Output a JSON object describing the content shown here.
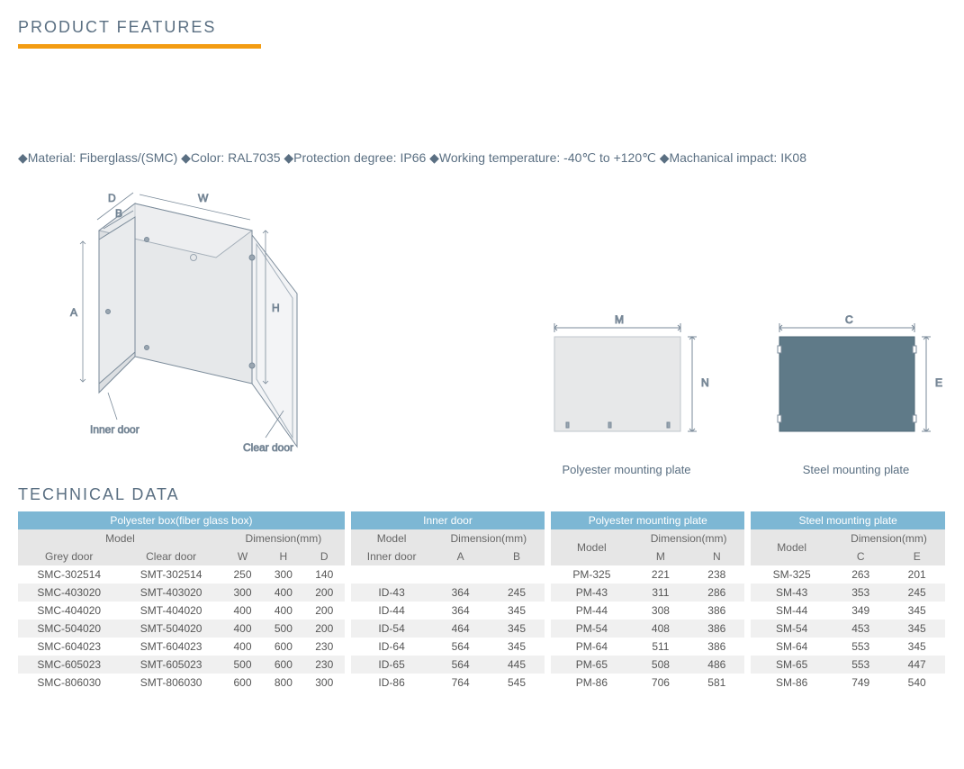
{
  "titles": {
    "features": "PRODUCT FEATURES",
    "technical": "TECHNICAL DATA"
  },
  "features_text": "◆Material: Fiberglass/(SMC)  ◆Color: RAL7035  ◆Protection degree: IP66  ◆Working temperature: -40℃ to +120℃  ◆Machanical impact: IK08",
  "diagram_labels": {
    "inner_door": "Inner door",
    "clear_door": "Clear door",
    "poly_plate": "Polyester mounting plate",
    "steel_plate": "Steel mounting plate",
    "W": "W",
    "D": "D",
    "H": "H",
    "A": "A",
    "B": "B",
    "M": "M",
    "N": "N",
    "C": "C",
    "E": "E"
  },
  "colors": {
    "accent_orange": "#f39c12",
    "header_blue": "#7db7d4",
    "text": "#5a6f82",
    "steel_fill": "#5f7a88",
    "poly_fill": "#e7e8e9",
    "grey_header": "#e6e6e6",
    "alt_row": "#f0f0f0"
  },
  "table": {
    "group_headers": [
      "Polyester box(fiber glass box)",
      "Inner door",
      "Polyester mounting plate",
      "Steel mounting plate"
    ],
    "sub_headers_row1": [
      "Model",
      "Dimension(mm)",
      "Model",
      "Dimension(mm)",
      "Model",
      "Dimension(mm)",
      "Model",
      "Dimension(mm)"
    ],
    "sub_headers_row2": [
      "Grey door",
      "Clear door",
      "W",
      "H",
      "D",
      "Inner door",
      "A",
      "B",
      "M",
      "N",
      "C",
      "E"
    ],
    "rows": [
      {
        "g": "SMC-302514",
        "c": "SMT-302514",
        "w": "250",
        "h": "300",
        "d": "140",
        "id": "",
        "a": "",
        "b": "",
        "pm": "PM-325",
        "m": "221",
        "n": "238",
        "sm": "SM-325",
        "cc": "263",
        "e": "201"
      },
      {
        "g": "SMC-403020",
        "c": "SMT-403020",
        "w": "300",
        "h": "400",
        "d": "200",
        "id": "ID-43",
        "a": "364",
        "b": "245",
        "pm": "PM-43",
        "m": "311",
        "n": "286",
        "sm": "SM-43",
        "cc": "353",
        "e": "245"
      },
      {
        "g": "SMC-404020",
        "c": "SMT-404020",
        "w": "400",
        "h": "400",
        "d": "200",
        "id": "ID-44",
        "a": "364",
        "b": "345",
        "pm": "PM-44",
        "m": "308",
        "n": "386",
        "sm": "SM-44",
        "cc": "349",
        "e": "345"
      },
      {
        "g": "SMC-504020",
        "c": "SMT-504020",
        "w": "400",
        "h": "500",
        "d": "200",
        "id": "ID-54",
        "a": "464",
        "b": "345",
        "pm": "PM-54",
        "m": "408",
        "n": "386",
        "sm": "SM-54",
        "cc": "453",
        "e": "345"
      },
      {
        "g": "SMC-604023",
        "c": "SMT-604023",
        "w": "400",
        "h": "600",
        "d": "230",
        "id": "ID-64",
        "a": "564",
        "b": "345",
        "pm": "PM-64",
        "m": "511",
        "n": "386",
        "sm": "SM-64",
        "cc": "553",
        "e": "345"
      },
      {
        "g": "SMC-605023",
        "c": "SMT-605023",
        "w": "500",
        "h": "600",
        "d": "230",
        "id": "ID-65",
        "a": "564",
        "b": "445",
        "pm": "PM-65",
        "m": "508",
        "n": "486",
        "sm": "SM-65",
        "cc": "553",
        "e": "447"
      },
      {
        "g": "SMC-806030",
        "c": "SMT-806030",
        "w": "600",
        "h": "800",
        "d": "300",
        "id": "ID-86",
        "a": "764",
        "b": "545",
        "pm": "PM-86",
        "m": "706",
        "n": "581",
        "sm": "SM-86",
        "cc": "749",
        "e": "540"
      }
    ]
  }
}
